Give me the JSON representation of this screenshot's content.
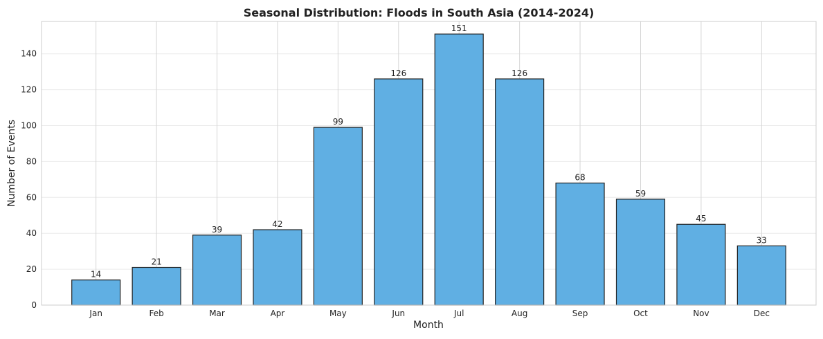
{
  "chart_data": {
    "type": "bar",
    "title": "Seasonal Distribution: Floods in South Asia (2014-2024)",
    "xlabel": "Month",
    "ylabel": "Number of Events",
    "categories": [
      "Jan",
      "Feb",
      "Mar",
      "Apr",
      "May",
      "Jun",
      "Jul",
      "Aug",
      "Sep",
      "Oct",
      "Nov",
      "Dec"
    ],
    "values": [
      14,
      21,
      39,
      42,
      99,
      126,
      151,
      126,
      68,
      59,
      45,
      33
    ],
    "ylim": [
      0,
      158
    ],
    "yticks": [
      0,
      20,
      40,
      60,
      80,
      100,
      120,
      140
    ],
    "grid": true,
    "bar_color": "#5dade2",
    "bar_edge_color": "#222222"
  }
}
